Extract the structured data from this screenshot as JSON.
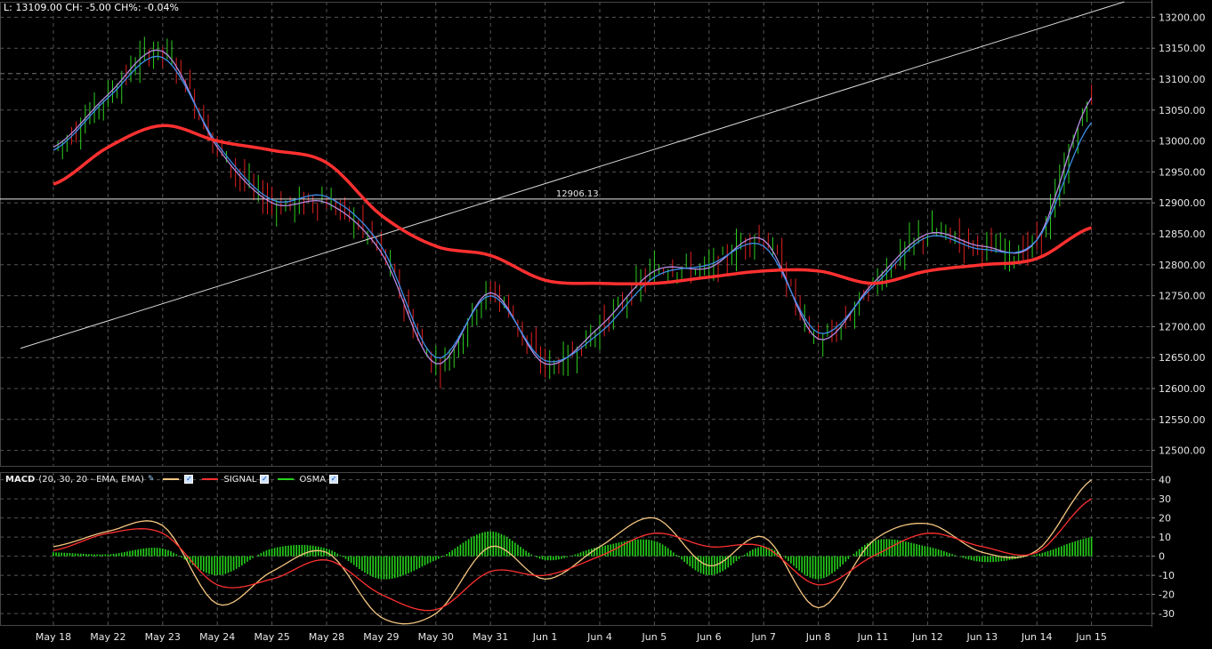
{
  "quote_line": "L: 13109.00 CH: -5.00 CH%: -0.04%",
  "colors": {
    "candle_up": "#2ccf1e",
    "candle_down": "#e02020",
    "ema_fast": "#b58adf",
    "ema_slow": "#3d8de8",
    "ema_long": "#ff3030",
    "trendline": "#d8d8d8",
    "macd": "#f7c680",
    "signal": "#ff3030",
    "osma": "#25d21b",
    "grid": "#555555"
  },
  "macd_legend": {
    "title": "MACD",
    "params": "(20, 30, 20 - EMA, EMA)",
    "signal_label": "SIGNAL",
    "osma_label": "OSMA"
  },
  "chart_data": [
    {
      "type": "line",
      "panel": "price",
      "x": [
        "May 18",
        "May 22",
        "May 23",
        "May 24",
        "May 25",
        "May 28",
        "May 29",
        "May 30",
        "May 31",
        "Jun 1",
        "Jun 4",
        "Jun 5",
        "Jun 6",
        "Jun 7",
        "Jun 8",
        "Jun 11",
        "Jun 12",
        "Jun 13",
        "Jun 14",
        "Jun 15"
      ],
      "ylim": [
        12475,
        13225
      ],
      "y_ticks": [
        12500,
        12550,
        12600,
        12650,
        12700,
        12750,
        12800,
        12850,
        12900,
        12950,
        13000,
        13050,
        13100,
        13150,
        13200
      ],
      "last_price": 13109,
      "horizontal_line": {
        "value": 12906.13,
        "label": "12906.13"
      },
      "trendline": {
        "from": [
          -0.6,
          12665
        ],
        "to": [
          19.6,
          13225
        ]
      },
      "series": [
        {
          "name": "",
          "role": "ema_fast",
          "values": [
            12990,
            13075,
            13145,
            12990,
            12900,
            12900,
            12820,
            12640,
            12755,
            12640,
            12700,
            12790,
            12795,
            12840,
            12680,
            12770,
            12850,
            12830,
            12840,
            13070
          ]
        },
        {
          "name": "",
          "role": "ema_slow",
          "values": [
            12985,
            13070,
            13135,
            12995,
            12905,
            12910,
            12830,
            12650,
            12750,
            12645,
            12690,
            12780,
            12800,
            12830,
            12690,
            12765,
            12845,
            12825,
            12840,
            13030
          ]
        },
        {
          "name": "",
          "role": "ema_long",
          "values": [
            12930,
            12990,
            13025,
            13000,
            12985,
            12965,
            12880,
            12830,
            12815,
            12775,
            12770,
            12770,
            12780,
            12790,
            12790,
            12770,
            12790,
            12800,
            12810,
            12860
          ]
        }
      ]
    },
    {
      "type": "line",
      "panel": "macd",
      "ylim": [
        -36,
        44
      ],
      "y_ticks": [
        -30,
        -20,
        -10,
        0,
        10,
        20,
        30,
        40
      ],
      "series": [
        {
          "name": "",
          "role": "macd",
          "values": [
            5,
            13,
            16,
            -25,
            -8,
            2,
            -32,
            -30,
            5,
            -12,
            5,
            20,
            -5,
            10,
            -27,
            8,
            17,
            2,
            3,
            40
          ]
        },
        {
          "name": "SIGNAL",
          "role": "signal",
          "values": [
            3,
            12,
            12,
            -15,
            -12,
            -2,
            -20,
            -28,
            -8,
            -10,
            0,
            12,
            5,
            5,
            -15,
            0,
            12,
            5,
            2,
            30
          ]
        },
        {
          "name": "OSMA",
          "role": "osma",
          "values": [
            2,
            1,
            4,
            -10,
            4,
            4,
            -12,
            -2,
            13,
            -2,
            5,
            8,
            -10,
            5,
            -12,
            8,
            5,
            -3,
            1,
            10
          ]
        }
      ]
    }
  ]
}
